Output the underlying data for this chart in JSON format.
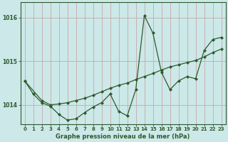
{
  "title": "Graphe pression niveau de la mer (hPa)",
  "bg_color": "#cce8e8",
  "grid_color": "#c8d8d8",
  "line_color": "#2d5a2d",
  "xlim": [
    -0.5,
    23.5
  ],
  "ylim": [
    1013.55,
    1016.35
  ],
  "yticks": [
    1014,
    1015,
    1016
  ],
  "xticks": [
    0,
    1,
    2,
    3,
    4,
    5,
    6,
    7,
    8,
    9,
    10,
    11,
    12,
    13,
    14,
    15,
    16,
    17,
    18,
    19,
    20,
    21,
    22,
    23
  ],
  "series_data": {
    "x": [
      0,
      1,
      2,
      3,
      4,
      5,
      6,
      7,
      8,
      9,
      10,
      11,
      12,
      13,
      14,
      15,
      16,
      17,
      18,
      19,
      20,
      21,
      22,
      23
    ],
    "y": [
      1014.55,
      1014.25,
      1014.05,
      1013.97,
      1013.78,
      1013.65,
      1013.68,
      1013.82,
      1013.95,
      1014.05,
      1014.25,
      1013.85,
      1013.75,
      1014.35,
      1016.05,
      1015.65,
      1014.75,
      1014.35,
      1014.55,
      1014.65,
      1014.6,
      1015.25,
      1015.5,
      1015.55
    ]
  },
  "series_trend": {
    "x": [
      0,
      2,
      3,
      4,
      5,
      6,
      7,
      8,
      9,
      10,
      11,
      12,
      13,
      14,
      15,
      16,
      17,
      18,
      19,
      20,
      21,
      22,
      23
    ],
    "y": [
      1014.55,
      1014.1,
      1014.0,
      1014.02,
      1014.05,
      1014.1,
      1014.15,
      1014.22,
      1014.3,
      1014.38,
      1014.45,
      1014.5,
      1014.58,
      1014.65,
      1014.72,
      1014.8,
      1014.87,
      1014.92,
      1014.97,
      1015.02,
      1015.1,
      1015.2,
      1015.28
    ]
  }
}
